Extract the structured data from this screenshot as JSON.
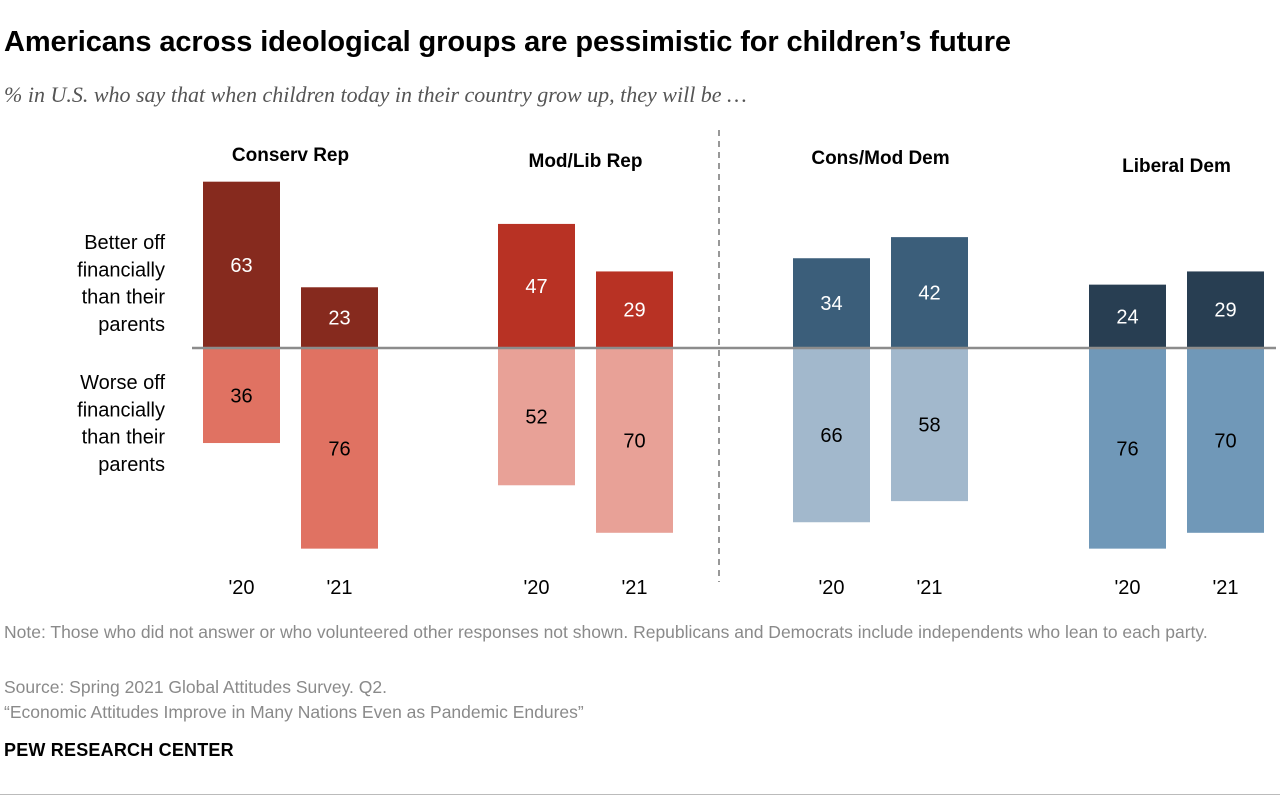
{
  "header": {
    "title": "Americans across ideological groups are pessimistic for children’s future",
    "subtitle": "% in U.S. who say that when children today in their country grow up, they will be …"
  },
  "chart_data": {
    "type": "bar",
    "subtype": "diverging-stacked",
    "categories": [
      "'20",
      "'21"
    ],
    "row_labels": {
      "better": [
        "Better off",
        "financially",
        "than their",
        "parents"
      ],
      "worse": [
        "Worse off",
        "financially",
        "than their",
        "parents"
      ]
    },
    "groups": [
      {
        "name": "Conserv Rep",
        "better": [
          63,
          23
        ],
        "worse": [
          36,
          76
        ],
        "better_color": "#862a1e",
        "worse_color": "#e07262"
      },
      {
        "name": "Mod/Lib Rep",
        "better": [
          47,
          29
        ],
        "worse": [
          52,
          70
        ],
        "better_color": "#b83224",
        "worse_color": "#e8a197"
      },
      {
        "name": "Cons/Mod Dem",
        "better": [
          34,
          42
        ],
        "worse": [
          66,
          58
        ],
        "better_color": "#3b5e7a",
        "worse_color": "#a2b8cc"
      },
      {
        "name": "Liberal Dem",
        "better": [
          24,
          29
        ],
        "worse": [
          76,
          70
        ],
        "better_color": "#283e52",
        "worse_color": "#7098b8"
      }
    ],
    "divider": "between Mod/Lib Rep and Cons/Mod Dem",
    "grid": false,
    "legend": "none"
  },
  "footer": {
    "note": "Note: Those who did not answer or who volunteered other responses not shown. Republicans and Democrats include independents who lean to each party.",
    "source": "Source: Spring 2021 Global Attitudes Survey. Q2.",
    "report": "“Economic Attitudes Improve in Many Nations Even as Pandemic Endures”",
    "brand": "PEW RESEARCH CENTER"
  }
}
